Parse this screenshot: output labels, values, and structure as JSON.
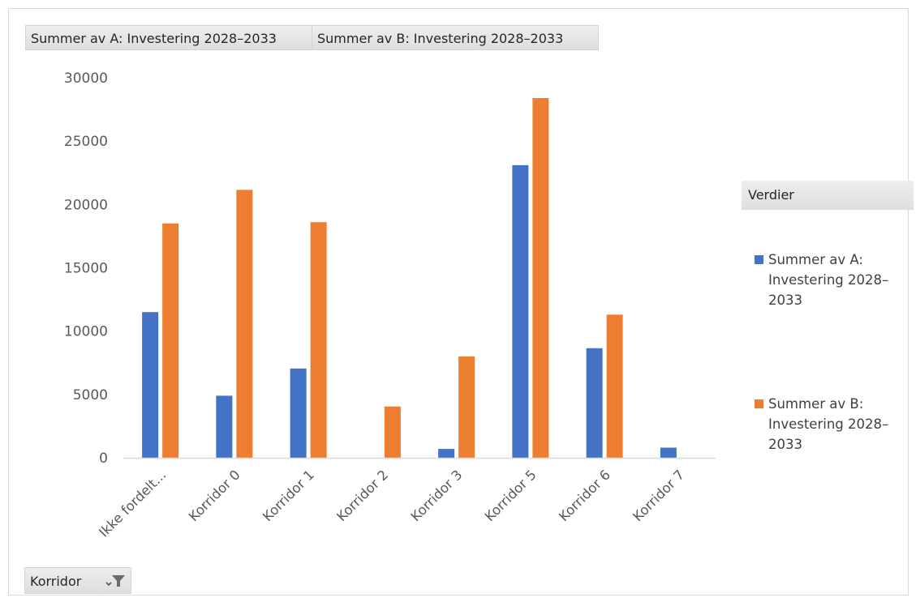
{
  "field_buttons": {
    "series_a": "Summer av A: Investering 2028–2033",
    "series_b": "Summer av B: Investering 2028–2033"
  },
  "legend": {
    "title": "Verdier",
    "entries": [
      {
        "name": "Summer av A: Investering 2028–2033",
        "color": "#4472C4"
      },
      {
        "name": "Summer av B: Investering 2028–2033",
        "color": "#ED7D31"
      }
    ]
  },
  "filter": {
    "label": "Korridor",
    "icon": "filter-dropdown-icon"
  },
  "chart_data": {
    "type": "bar",
    "categories": [
      "Ikke fordelt...",
      "Korridor 0",
      "Korridor 1",
      "Korridor 2",
      "Korridor 3",
      "Korridor 5",
      "Korridor 6",
      "Korridor 7"
    ],
    "series": [
      {
        "name": "Summer av A: Investering 2028–2033",
        "color": "#4472C4",
        "values": [
          11500,
          4900,
          7050,
          0,
          700,
          23100,
          8650,
          800
        ]
      },
      {
        "name": "Summer av B: Investering 2028–2033",
        "color": "#ED7D31",
        "values": [
          18500,
          21150,
          18600,
          4050,
          8000,
          28400,
          11300,
          0
        ]
      }
    ],
    "ylim": [
      0,
      30000
    ],
    "yticks": [
      0,
      5000,
      10000,
      15000,
      20000,
      25000,
      30000
    ],
    "grid": false,
    "legend_position": "right"
  }
}
